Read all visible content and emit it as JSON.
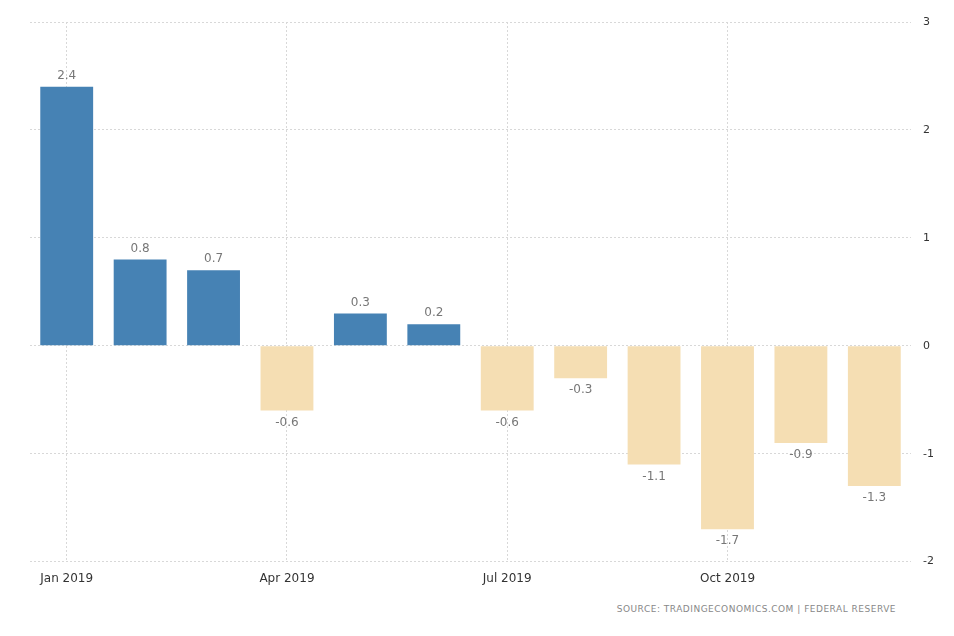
{
  "chart_data": {
    "type": "bar",
    "categories": [
      "Jan 2019",
      null,
      null,
      "Apr 2019",
      null,
      null,
      "Jul 2019",
      null,
      null,
      "Oct 2019",
      null,
      null
    ],
    "values": [
      2.4,
      0.8,
      0.7,
      -0.6,
      0.3,
      0.2,
      -0.6,
      -0.3,
      -1.1,
      -1.7,
      -0.9,
      -1.3
    ],
    "colors": [
      "#4682b4",
      "#4682b4",
      "#4682b4",
      "#f5deb3",
      "#4682b4",
      "#4682b4",
      "#f5deb3",
      "#f5deb3",
      "#f5deb3",
      "#f5deb3",
      "#f5deb3",
      "#f5deb3"
    ],
    "ylim": [
      -2,
      3
    ],
    "yticks": [
      -2,
      -1,
      0,
      1,
      2,
      3
    ],
    "grid": true,
    "data_labels": true,
    "annotations": [
      "SOURCE: TRADINGECONOMICS.COM | FEDERAL RESERVE"
    ]
  }
}
